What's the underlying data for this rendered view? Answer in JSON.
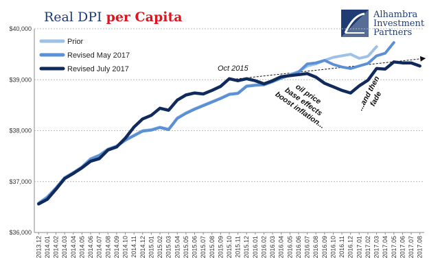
{
  "title": {
    "part1": "Real DPI ",
    "part2": "per Capita"
  },
  "colors": {
    "title1": "#1f3a7a",
    "title2": "#e0141e",
    "prior": "#9ec2e6",
    "may": "#5b8fd6",
    "july": "#102a5c",
    "brand": "#1f3c73"
  },
  "brand": {
    "line1": "Alhambra",
    "line2": "Investment",
    "line3": "Partners",
    "logo_icon": "alhambra-logo-icon"
  },
  "annotations": {
    "oct2015": "Oct 2015",
    "oil1": "oil price",
    "oil2": "base effects",
    "oil3": "boost inflation...",
    "fade1": "...and then",
    "fade2": "fade"
  },
  "chart_data": {
    "type": "line",
    "categories": [
      "2013.12",
      "2014.01",
      "2014.02",
      "2014.03",
      "2014.04",
      "2014.05",
      "2014.06",
      "2014.07",
      "2014.08",
      "2014.09",
      "2014.10",
      "2014.11",
      "2014.12",
      "2015.01",
      "2015.02",
      "2015.03",
      "2015.04",
      "2015.05",
      "2015.06",
      "2015.07",
      "2015.08",
      "2015.09",
      "2015.10",
      "2015.11",
      "2015.12",
      "2016.01",
      "2016.02",
      "2016.03",
      "2016.04",
      "2016.05",
      "2016.06",
      "2016.07",
      "2016.08",
      "2016.09",
      "2016.10",
      "2016.11",
      "2016.12",
      "2017.01",
      "2017.02",
      "2017.03",
      "2017.04",
      "2017.05",
      "2017.06",
      "2017.07",
      "2017.08"
    ],
    "ylim": [
      36000,
      40000
    ],
    "yticks": [
      36000,
      37000,
      38000,
      39000,
      40000
    ],
    "ytick_labels": [
      "$36,000",
      "$37,000",
      "$38,000",
      "$39,000",
      "$40,000"
    ],
    "legend_position": "top-left",
    "grid": "horizontal-dashed",
    "series": [
      {
        "name": "Prior",
        "values": [
          36580,
          36700,
          36880,
          37080,
          37180,
          37290,
          37450,
          37520,
          37640,
          37700,
          37820,
          37910,
          38000,
          38020,
          38070,
          38030,
          38250,
          38350,
          38430,
          38500,
          38570,
          38640,
          38720,
          38740,
          38880,
          38900,
          38910,
          38980,
          39040,
          39100,
          39160,
          39270,
          39310,
          39380,
          39440,
          39470,
          39500,
          39420,
          39460,
          39650,
          null,
          null,
          null,
          null,
          null
        ]
      },
      {
        "name": "Revised May 2017",
        "values": [
          36570,
          36690,
          36870,
          37070,
          37170,
          37280,
          37440,
          37510,
          37630,
          37690,
          37810,
          37900,
          37990,
          38010,
          38060,
          38020,
          38240,
          38340,
          38420,
          38490,
          38560,
          38630,
          38710,
          38730,
          38870,
          38890,
          38900,
          38960,
          39030,
          39090,
          39150,
          39310,
          39330,
          39380,
          39300,
          39250,
          39220,
          39270,
          39320,
          39470,
          39520,
          39730,
          null,
          null,
          null
        ]
      },
      {
        "name": "Revised July 2017",
        "values": [
          36560,
          36650,
          36850,
          37060,
          37160,
          37270,
          37400,
          37450,
          37620,
          37680,
          37850,
          38070,
          38230,
          38300,
          38440,
          38400,
          38600,
          38700,
          38740,
          38720,
          38790,
          38870,
          39020,
          38980,
          39020,
          38980,
          38920,
          38980,
          39060,
          39080,
          39100,
          39120,
          39050,
          38930,
          38860,
          38790,
          38740,
          38880,
          38990,
          39220,
          39210,
          39350,
          39330,
          39330,
          39270
        ]
      }
    ],
    "trend_line": {
      "from": {
        "x": "2015.10",
        "y": 39000
      },
      "to": {
        "x": "2017.08",
        "y": 39420
      }
    }
  }
}
